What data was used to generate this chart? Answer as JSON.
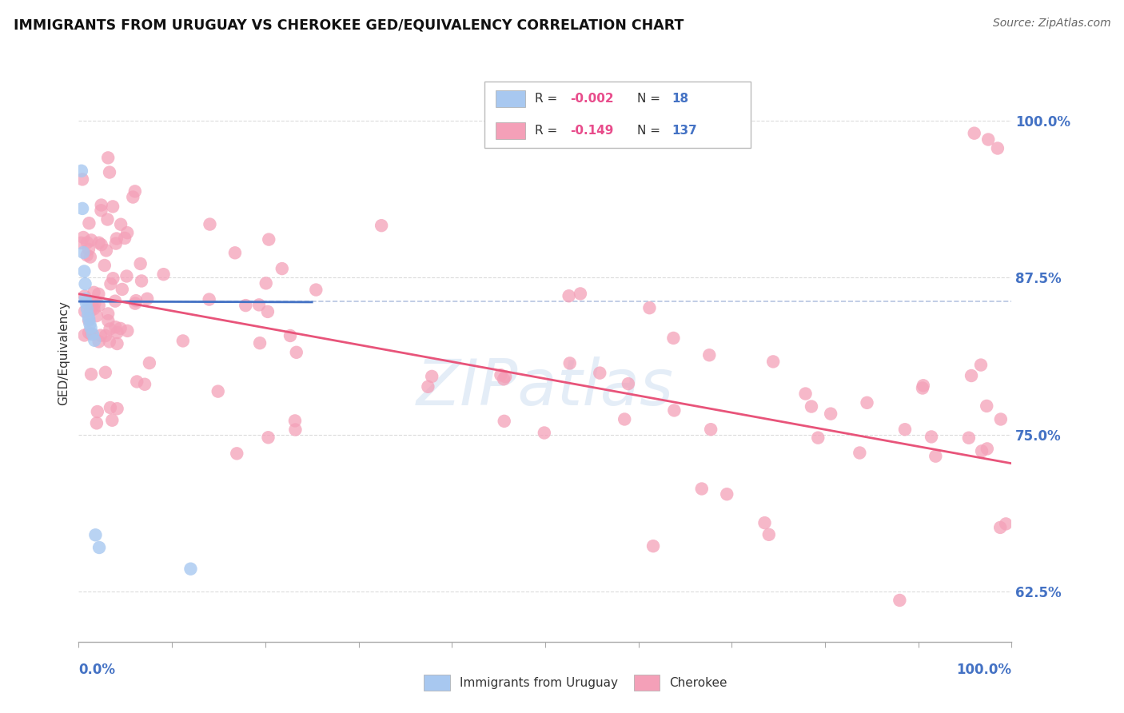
{
  "title": "IMMIGRANTS FROM URUGUAY VS CHEROKEE GED/EQUIVALENCY CORRELATION CHART",
  "source": "Source: ZipAtlas.com",
  "ylabel": "GED/Equivalency",
  "ytick_values": [
    0.625,
    0.75,
    0.875,
    1.0
  ],
  "xlim": [
    0.0,
    1.0
  ],
  "ylim": [
    0.585,
    1.045
  ],
  "color_uruguay": "#A8C8F0",
  "color_cherokee": "#F4A0B8",
  "line_color_uruguay": "#4472C4",
  "line_color_cherokee": "#E8547A",
  "background_color": "#FFFFFF",
  "grid_color": "#CCCCCC",
  "ref_line_color": "#AABBDD",
  "slope_uru": -0.002,
  "intercept_uru": 0.856,
  "slope_che": -0.135,
  "intercept_che": 0.862
}
